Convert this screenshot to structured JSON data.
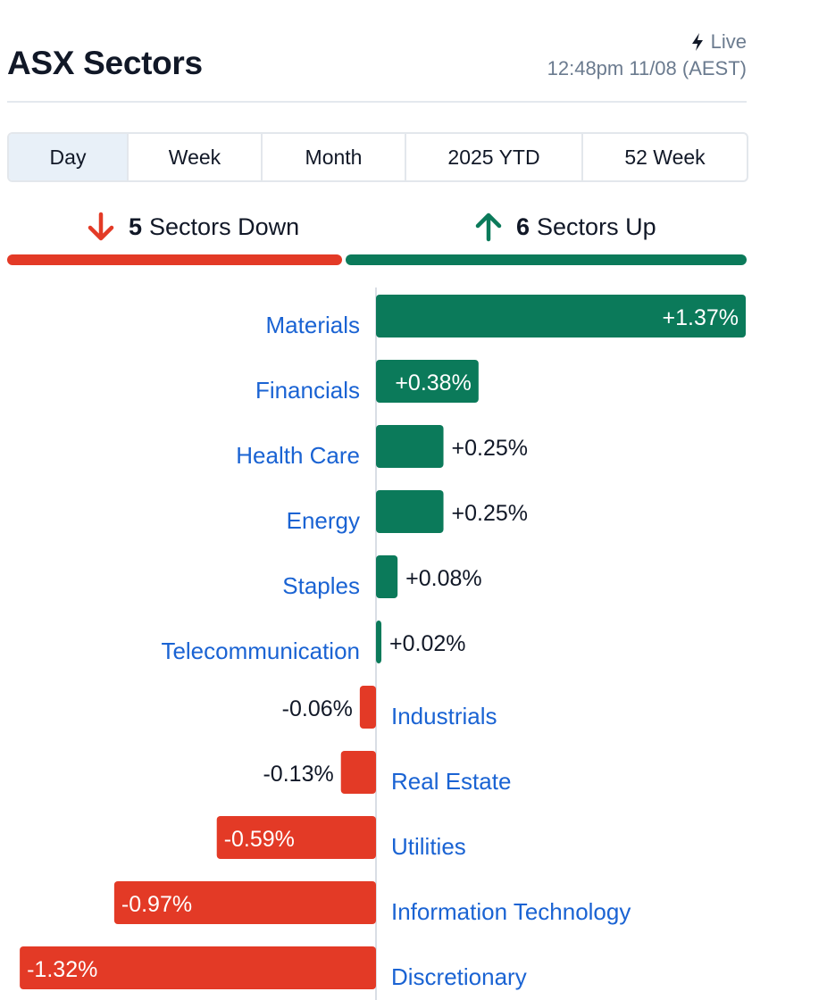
{
  "header": {
    "title": "ASX Sectors",
    "live_label": "Live",
    "timestamp": "12:48pm 11/08 (AEST)"
  },
  "tabs": [
    {
      "label": "Day",
      "active": true
    },
    {
      "label": "Week",
      "active": false
    },
    {
      "label": "Month",
      "active": false
    },
    {
      "label": "2025 YTD",
      "active": false
    },
    {
      "label": "52 Week",
      "active": false
    }
  ],
  "summary": {
    "down_count": "5",
    "down_label": "Sectors Down",
    "up_count": "6",
    "up_label": "Sectors Up"
  },
  "colors": {
    "up": "#0b7a5a",
    "down": "#e33a26",
    "label": "#1a63d3",
    "text": "#111827"
  },
  "chart_data": {
    "type": "bar",
    "orientation": "horizontal",
    "categories": [
      "Materials",
      "Financials",
      "Health Care",
      "Energy",
      "Staples",
      "Telecommunication",
      "Industrials",
      "Real Estate",
      "Utilities",
      "Information Technology",
      "Discretionary"
    ],
    "values": [
      1.37,
      0.38,
      0.25,
      0.25,
      0.08,
      0.02,
      -0.06,
      -0.13,
      -0.59,
      -0.97,
      -1.32
    ],
    "value_labels": [
      "+1.37%",
      "+0.38%",
      "+0.25%",
      "+0.25%",
      "+0.08%",
      "+0.02%",
      "-0.06%",
      "-0.13%",
      "-0.59%",
      "-0.97%",
      "-1.32%"
    ],
    "title": "",
    "xlabel": "",
    "ylabel": "",
    "grid": false,
    "legend": "none"
  }
}
